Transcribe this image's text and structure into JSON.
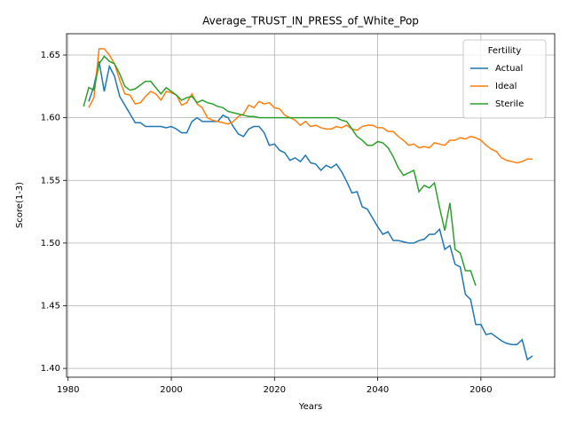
{
  "chart_data": {
    "type": "line",
    "title": "Average_TRUST_IN_PRESS_of_White_Pop",
    "x_label": "Years",
    "y_label": "Score(1-3)",
    "legend_title": "Fertility",
    "legend_position": "upper right",
    "grid": true,
    "x": [
      1983,
      1984,
      1985,
      1986,
      1987,
      1988,
      1989,
      1990,
      1991,
      1992,
      1993,
      1994,
      1995,
      1996,
      1997,
      1998,
      1999,
      2000,
      2001,
      2002,
      2003,
      2004,
      2005,
      2006,
      2007,
      2008,
      2009,
      2010,
      2011,
      2012,
      2013,
      2014,
      2015,
      2016,
      2017,
      2018,
      2019,
      2020,
      2021,
      2022,
      2023,
      2024,
      2025,
      2026,
      2027,
      2028,
      2029,
      2030,
      2031,
      2032,
      2033,
      2034,
      2035,
      2036,
      2037,
      2038,
      2039,
      2040,
      2041,
      2042,
      2043,
      2044,
      2045,
      2046,
      2047,
      2048,
      2049,
      2050,
      2051,
      2052,
      2053,
      2054,
      2055,
      2056,
      2057,
      2058,
      2059,
      2060,
      2061,
      2062,
      2063,
      2064,
      2065,
      2066,
      2067,
      2068,
      2069,
      2070
    ],
    "series": [
      {
        "name": "Actual",
        "color": "#1f77b4",
        "values": [
          null,
          1.613,
          1.625,
          1.645,
          1.621,
          1.641,
          1.633,
          1.617,
          1.61,
          1.603,
          1.596,
          1.596,
          1.593,
          1.593,
          1.593,
          1.593,
          1.592,
          1.593,
          1.591,
          1.588,
          1.588,
          1.597,
          1.6,
          1.597,
          1.597,
          1.597,
          1.597,
          1.602,
          1.6,
          1.593,
          1.587,
          1.585,
          1.591,
          1.593,
          1.593,
          1.588,
          1.578,
          1.579,
          1.574,
          1.572,
          1.566,
          1.568,
          1.565,
          1.57,
          1.564,
          1.563,
          1.558,
          1.562,
          1.56,
          1.563,
          1.557,
          1.549,
          1.54,
          1.541,
          1.529,
          1.527,
          1.52,
          1.513,
          1.507,
          1.509,
          1.502,
          1.502,
          1.501,
          1.5,
          1.5,
          1.502,
          1.503,
          1.507,
          1.507,
          1.511,
          1.495,
          1.498,
          1.483,
          1.481,
          1.459,
          1.455,
          1.435,
          1.435,
          1.427,
          1.428,
          1.425,
          1.422,
          1.42,
          1.419,
          1.419,
          1.423,
          1.407,
          1.41
        ]
      },
      {
        "name": "Ideal",
        "color": "#ff7f0e",
        "values": [
          null,
          1.608,
          1.616,
          1.655,
          1.655,
          1.65,
          1.643,
          1.63,
          1.619,
          1.618,
          1.611,
          1.612,
          1.617,
          1.621,
          1.619,
          1.614,
          1.621,
          1.62,
          1.618,
          1.61,
          1.612,
          1.619,
          1.611,
          1.608,
          1.6,
          1.598,
          1.597,
          1.596,
          1.595,
          1.597,
          1.601,
          1.603,
          1.61,
          1.608,
          1.613,
          1.611,
          1.612,
          1.608,
          1.607,
          1.602,
          1.6,
          1.598,
          1.594,
          1.597,
          1.593,
          1.594,
          1.592,
          1.591,
          1.591,
          1.593,
          1.592,
          1.594,
          1.591,
          1.59,
          1.593,
          1.594,
          1.594,
          1.592,
          1.592,
          1.589,
          1.589,
          1.585,
          1.582,
          1.578,
          1.579,
          1.576,
          1.577,
          1.576,
          1.58,
          1.579,
          1.578,
          1.582,
          1.582,
          1.584,
          1.583,
          1.585,
          1.584,
          1.582,
          1.578,
          1.575,
          1.573,
          1.568,
          1.566,
          1.565,
          1.564,
          1.565,
          1.567,
          1.567
        ]
      },
      {
        "name": "Sterile",
        "color": "#2ca02c",
        "values": [
          1.609,
          1.624,
          1.622,
          1.643,
          1.649,
          1.645,
          1.643,
          1.635,
          1.625,
          1.622,
          1.623,
          1.626,
          1.629,
          1.629,
          1.624,
          1.619,
          1.624,
          1.621,
          1.618,
          1.614,
          1.616,
          1.617,
          1.612,
          1.614,
          1.612,
          1.611,
          1.609,
          1.608,
          1.605,
          1.604,
          1.603,
          1.602,
          1.601,
          1.601,
          1.6,
          1.6,
          1.6,
          1.6,
          1.6,
          1.6,
          1.6,
          1.6,
          1.6,
          1.6,
          1.6,
          1.6,
          1.6,
          1.6,
          1.6,
          1.6,
          1.598,
          1.597,
          1.591,
          1.585,
          1.582,
          1.578,
          1.578,
          1.581,
          1.58,
          1.576,
          1.569,
          1.56,
          1.554,
          1.556,
          1.558,
          1.541,
          1.546,
          1.544,
          1.548,
          1.528,
          1.51,
          1.532,
          1.495,
          1.492,
          1.478,
          1.478,
          1.466,
          null,
          null,
          null,
          null,
          null,
          null,
          null,
          null,
          null,
          null,
          null
        ]
      }
    ],
    "xlim": [
      1979.7,
      2074.3
    ],
    "xticks": [
      1980,
      2000,
      2020,
      2040,
      2060
    ],
    "ylim": [
      1.393,
      1.667
    ],
    "yticks": [
      {
        "value": 1.4,
        "label": "1.40"
      },
      1.45,
      {
        "value": 1.5,
        "label": "1.50"
      },
      1.55,
      {
        "value": 1.6,
        "label": "1.60"
      },
      1.65
    ]
  }
}
